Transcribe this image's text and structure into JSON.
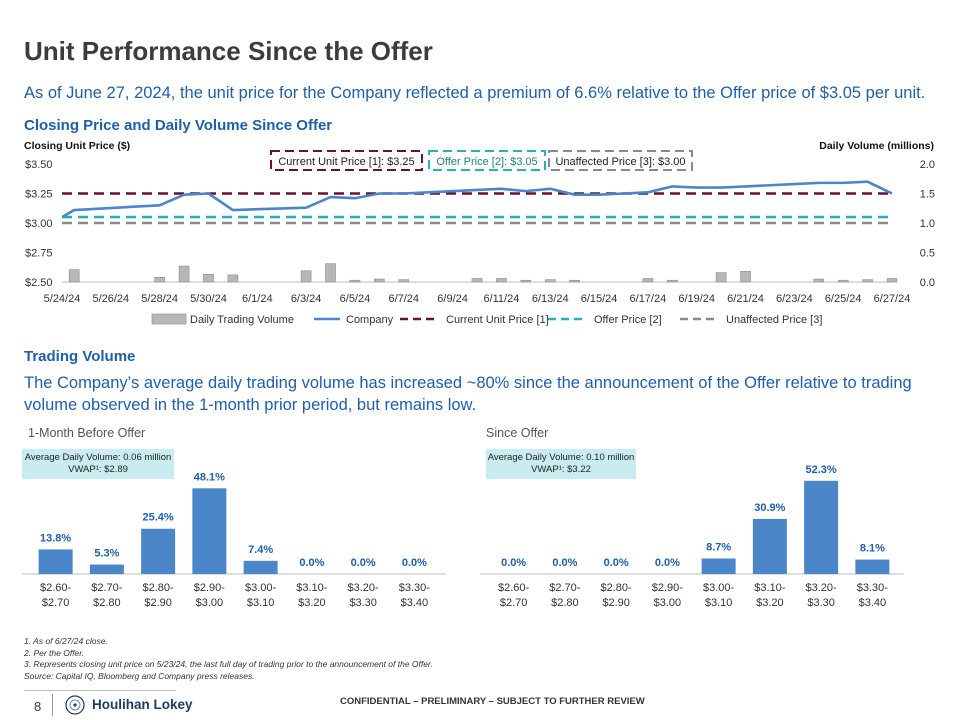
{
  "header": {
    "title": "Unit Performance Since the Offer",
    "subtitle": "As of June 27, 2024, the unit price for the Company reflected a premium of 6.6% relative to the Offer price of $3.05 per unit."
  },
  "section1": {
    "heading": "Closing Price and Daily Volume Since Offer",
    "left_axis_caption": "Closing Unit Price ($)",
    "right_axis_caption": "Daily Volume (millions)"
  },
  "section2": {
    "heading": "Trading Volume",
    "text": "The Company’s average daily trading volume has increased ~80% since the announcement of the Offer relative to trading volume observed in the 1-month prior period, but remains low.",
    "left_panel_label": "1-Month Before Offer",
    "right_panel_label": "Since Offer",
    "left_avg_line1": "Average Daily Volume: 0.06 million",
    "left_avg_line2": "VWAP¹: $2.89",
    "right_avg_line1": "Average Daily Volume: 0.10 million",
    "right_avg_line2": "VWAP¹: $3.22"
  },
  "footnotes": [
    "1.   As of 6/27/24 close.",
    "2.   Per the Offer.",
    "3.   Represents closing unit price on 5/23/24, the last full day of trading prior to the announcement of the Offer.",
    "Source: Capital IQ, Bloomberg and Company press releases."
  ],
  "footer": {
    "page_number": "8",
    "brand": "Houlihan Lokey",
    "confidential": "CONFIDENTIAL – PRELIMINARY – SUBJECT TO FURTHER REVIEW"
  },
  "colors": {
    "company": "#4a86c8",
    "volume": "#b7b7b7",
    "current": "#6b1030",
    "offer": "#26b3b8",
    "unaffected": "#8a8a8a",
    "bars": "#4a86c8",
    "blue_text": "#1f5fa8"
  },
  "chart_data": [
    {
      "type": "line",
      "title": "Closing Price and Daily Volume Since Offer",
      "ylabel": "Closing Unit Price ($)",
      "y2label": "Daily Volume (millions)",
      "ylim": [
        2.5,
        3.5
      ],
      "y2lim": [
        0.0,
        2.0
      ],
      "y_ticks": [
        "$2.50",
        "$2.75",
        "$3.00",
        "$3.25",
        "$3.50"
      ],
      "y_tick_values": [
        2.5,
        2.75,
        3.0,
        3.25,
        3.5
      ],
      "y2_ticks": [
        "0.0",
        "0.5",
        "1.0",
        "1.5",
        "2.0"
      ],
      "y2_tick_values": [
        0.0,
        0.5,
        1.0,
        1.5,
        2.0
      ],
      "x_tick_labels": [
        "5/24/24",
        "5/26/24",
        "5/28/24",
        "5/30/24",
        "6/1/24",
        "6/3/24",
        "6/5/24",
        "6/7/24",
        "6/9/24",
        "6/11/24",
        "6/13/24",
        "6/15/24",
        "6/17/24",
        "6/19/24",
        "6/21/24",
        "6/23/24",
        "6/25/24",
        "6/27/24"
      ],
      "x_tick_days": [
        0,
        2,
        4,
        6,
        8,
        10,
        12,
        14,
        16,
        18,
        20,
        22,
        24,
        26,
        28,
        30,
        32,
        34
      ],
      "company": {
        "days": [
          0,
          0.5,
          4,
          5,
          6,
          7,
          10,
          11,
          12,
          13,
          14,
          15,
          16,
          17,
          18,
          19,
          20,
          21,
          22,
          23,
          24,
          25,
          26,
          27,
          28,
          29,
          30,
          31,
          32,
          33,
          34
        ],
        "values": [
          3.05,
          3.11,
          3.15,
          3.24,
          3.25,
          3.11,
          3.13,
          3.22,
          3.21,
          3.25,
          3.25,
          3.26,
          3.27,
          3.28,
          3.29,
          3.27,
          3.29,
          3.24,
          3.24,
          3.25,
          3.26,
          3.31,
          3.3,
          3.3,
          3.31,
          3.32,
          3.33,
          3.34,
          3.34,
          3.35,
          3.25
        ]
      },
      "volume": {
        "days": [
          0.5,
          4,
          5,
          6,
          7,
          10,
          11,
          12,
          13,
          14,
          17,
          18,
          19,
          20,
          21,
          24,
          25,
          27,
          28,
          31,
          32,
          33,
          34
        ],
        "values": [
          0.21,
          0.08,
          0.27,
          0.13,
          0.12,
          0.19,
          0.31,
          0.03,
          0.05,
          0.04,
          0.06,
          0.06,
          0.03,
          0.04,
          0.03,
          0.06,
          0.03,
          0.16,
          0.18,
          0.05,
          0.03,
          0.04,
          0.06
        ]
      },
      "reference_lines": [
        {
          "name": "Current Unit Price [1]",
          "value": 3.25,
          "label": "Current Unit Price [1]: $3.25"
        },
        {
          "name": "Offer Price [2]",
          "value": 3.05,
          "label": "Offer Price [2]: $3.05"
        },
        {
          "name": "Unaffected Price [3]",
          "value": 3.0,
          "label": "Unaffected Price [3]: $3.00"
        }
      ],
      "legend": [
        "Daily Trading Volume",
        "Company",
        "Current Unit Price [1]",
        "Offer Price [2]",
        "Unaffected Price [3]"
      ]
    },
    {
      "type": "bar",
      "title": "1-Month Before Offer",
      "categories": [
        "$2.60-\n$2.70",
        "$2.70-\n$2.80",
        "$2.80-\n$2.90",
        "$2.90-\n$3.00",
        "$3.00-\n$3.10",
        "$3.10-\n$3.20",
        "$3.20-\n$3.30",
        "$3.30-\n$3.40"
      ],
      "values": [
        13.8,
        5.3,
        25.4,
        48.1,
        7.4,
        0.0,
        0.0,
        0.0
      ],
      "data_labels": [
        "13.8%",
        "5.3%",
        "25.4%",
        "48.1%",
        "7.4%",
        "0.0%",
        "0.0%",
        "0.0%"
      ],
      "ylim": [
        0,
        55
      ]
    },
    {
      "type": "bar",
      "title": "Since Offer",
      "categories": [
        "$2.60-\n$2.70",
        "$2.70-\n$2.80",
        "$2.80-\n$2.90",
        "$2.90-\n$3.00",
        "$3.00-\n$3.10",
        "$3.10-\n$3.20",
        "$3.20-\n$3.30",
        "$3.30-\n$3.40"
      ],
      "values": [
        0.0,
        0.0,
        0.0,
        0.0,
        8.7,
        30.9,
        52.3,
        8.1
      ],
      "data_labels": [
        "0.0%",
        "0.0%",
        "0.0%",
        "0.0%",
        "8.7%",
        "30.9%",
        "52.3%",
        "8.1%"
      ],
      "ylim": [
        0,
        55
      ]
    }
  ]
}
